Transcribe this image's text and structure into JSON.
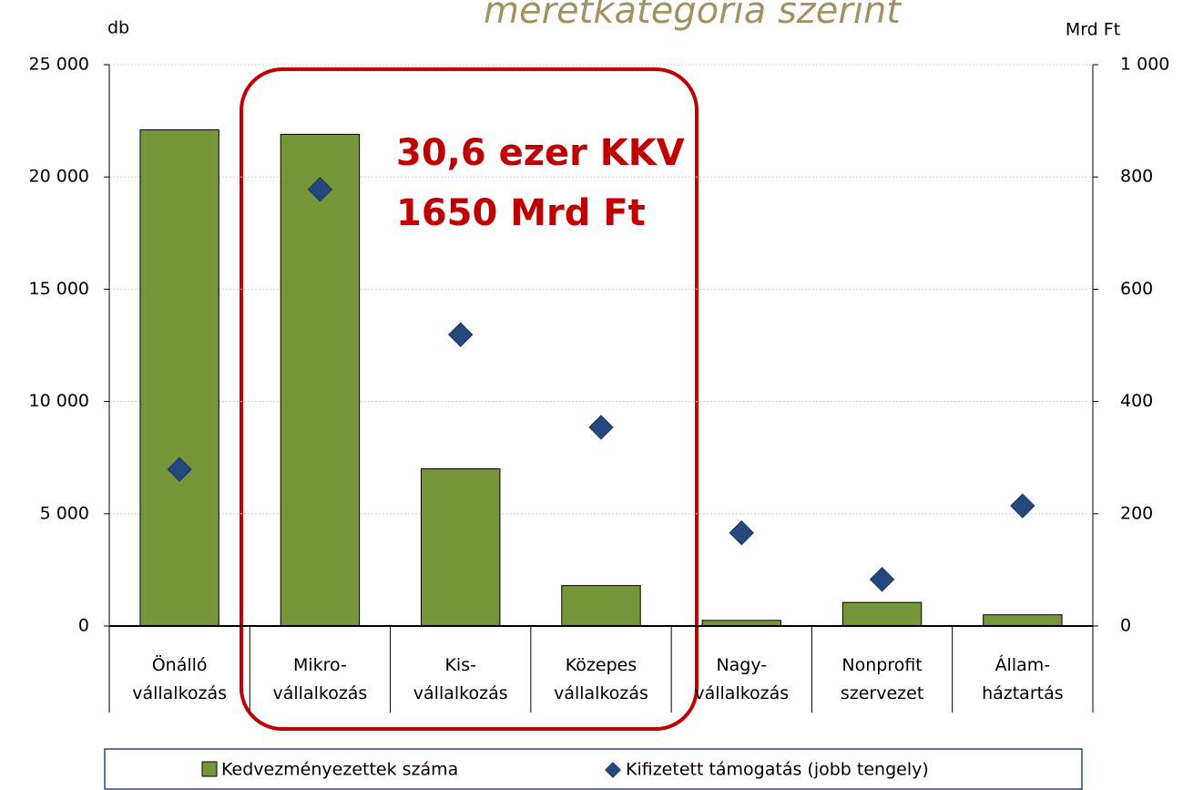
{
  "chart_data": {
    "type": "bar",
    "title": "méretkategória szerint",
    "y_label": "db",
    "y2_label": "Mrd Ft",
    "categories": [
      "Önálló\nvállalkozás",
      "Mikro-\nvállalkozás",
      "Kis-\nvállalkozás",
      "Közepes\nvállalkozás",
      "Nagy-\nvállalkozás",
      "Nonprofit\nszervezet",
      "Állam-\nháztartás"
    ],
    "series": [
      {
        "name": "Kedvezményezettek száma",
        "color": "#77963a",
        "values": [
          22100,
          21900,
          7000,
          1800,
          250,
          1050,
          500
        ]
      },
      {
        "name": "Kifizetett támogatás (jobb tengely)",
        "color": "#24487e",
        "axis": "y2",
        "values": [
          279,
          778,
          519,
          354,
          166,
          83,
          214
        ]
      }
    ],
    "ylim": [
      0,
      25000
    ],
    "yticks": [
      0,
      {
        "value": 5000,
        "label": "5 000"
      },
      {
        "value": 10000,
        "label": "10 000"
      },
      {
        "value": 15000,
        "label": "15 000"
      },
      {
        "value": 20000,
        "label": "20 000"
      },
      {
        "value": 25000,
        "label": "25 000"
      }
    ],
    "y2lim": [
      0,
      1000
    ],
    "y2ticks": [
      0,
      200,
      400,
      600,
      800,
      {
        "value": 1000,
        "label": "1 000"
      }
    ],
    "annotations": [
      "30,6 ezer KKV",
      "1650 Mrd Ft"
    ],
    "grid": true
  }
}
